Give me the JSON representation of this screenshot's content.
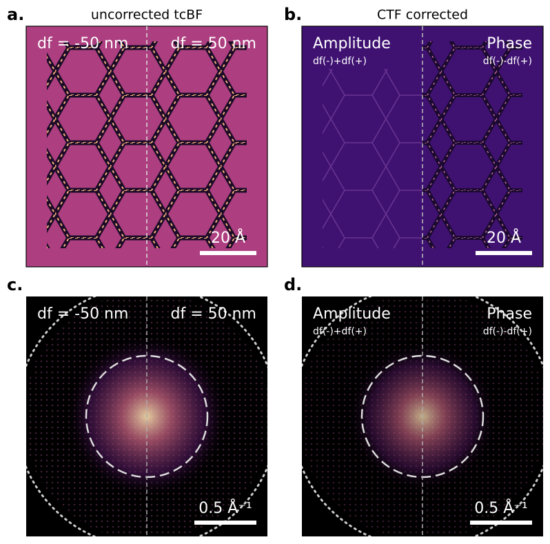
{
  "panels": [
    {
      "label": "a.",
      "title": "uncorrected tcBF",
      "left_text": "df = -50 nm",
      "right_text": "df = 50 nm",
      "scale_bar": "20 Å"
    },
    {
      "label": "b.",
      "title": "CTF corrected",
      "left_text": "Amplitude",
      "left_subtext": "df(-)+df(+)",
      "right_text": "Phase",
      "right_subtext": "df(-)-df(+)",
      "scale_bar": "20 Å"
    },
    {
      "label": "c.",
      "left_text": "df = -50 nm",
      "right_text": "df = 50 nm",
      "scale_bar": "0.5 Å⁻¹"
    },
    {
      "label": "d.",
      "left_text": "Amplitude",
      "left_subtext": "df(-)+df(+)",
      "right_text": "Phase",
      "right_subtext": "df(-)-df(+)",
      "scale_bar": "0.5 Å⁻¹"
    }
  ]
}
